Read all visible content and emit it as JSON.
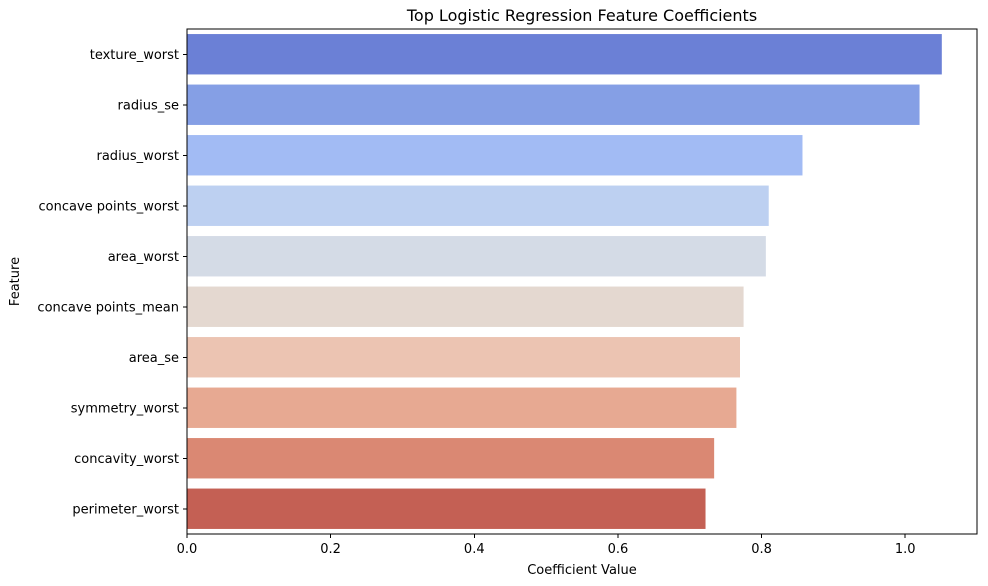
{
  "chart_data": {
    "type": "bar",
    "orientation": "horizontal",
    "title": "Top Logistic Regression Feature Coefficients",
    "xlabel": "Coefficient Value",
    "ylabel": "Feature",
    "xlim": [
      0,
      1.1
    ],
    "xticks": [
      0.0,
      0.2,
      0.4,
      0.6,
      0.8,
      1.0
    ],
    "xtick_labels": [
      "0.0",
      "0.2",
      "0.4",
      "0.6",
      "0.8",
      "1.0"
    ],
    "grid": false,
    "palette": "coolwarm",
    "categories": [
      "texture_worst",
      "radius_se",
      "radius_worst",
      "concave points_worst",
      "area_worst",
      "concave points_mean",
      "area_se",
      "symmetry_worst",
      "concavity_worst",
      "perimeter_worst"
    ],
    "values": [
      1.051,
      1.02,
      0.857,
      0.81,
      0.806,
      0.775,
      0.77,
      0.765,
      0.734,
      0.722
    ],
    "colors": [
      "#6b80d6",
      "#859fe5",
      "#a2bbf4",
      "#bdd0f1",
      "#d4dbe6",
      "#e4d8d0",
      "#ecc4b2",
      "#e7a992",
      "#da8873",
      "#c46054"
    ]
  }
}
